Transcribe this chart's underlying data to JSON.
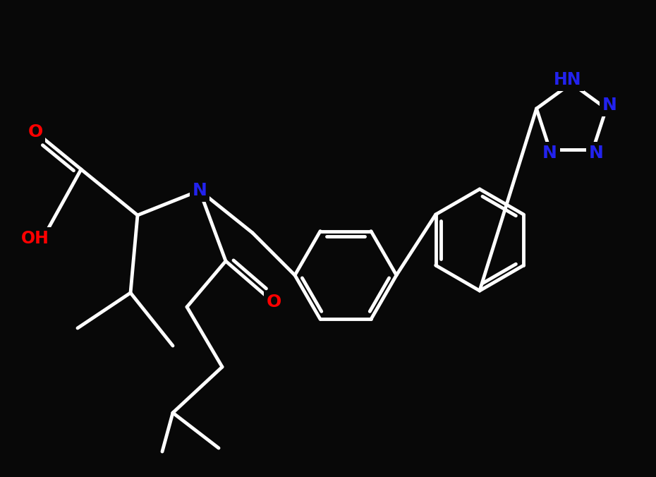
{
  "background_color": "#080808",
  "bond_color": "#ffffff",
  "atom_colors": {
    "N": "#2222ee",
    "O": "#ff0000",
    "C": "#ffffff"
  },
  "bond_width": 3.5,
  "font_size_atom": 18,
  "figsize": [
    9.3,
    6.76
  ],
  "dpi": 100
}
